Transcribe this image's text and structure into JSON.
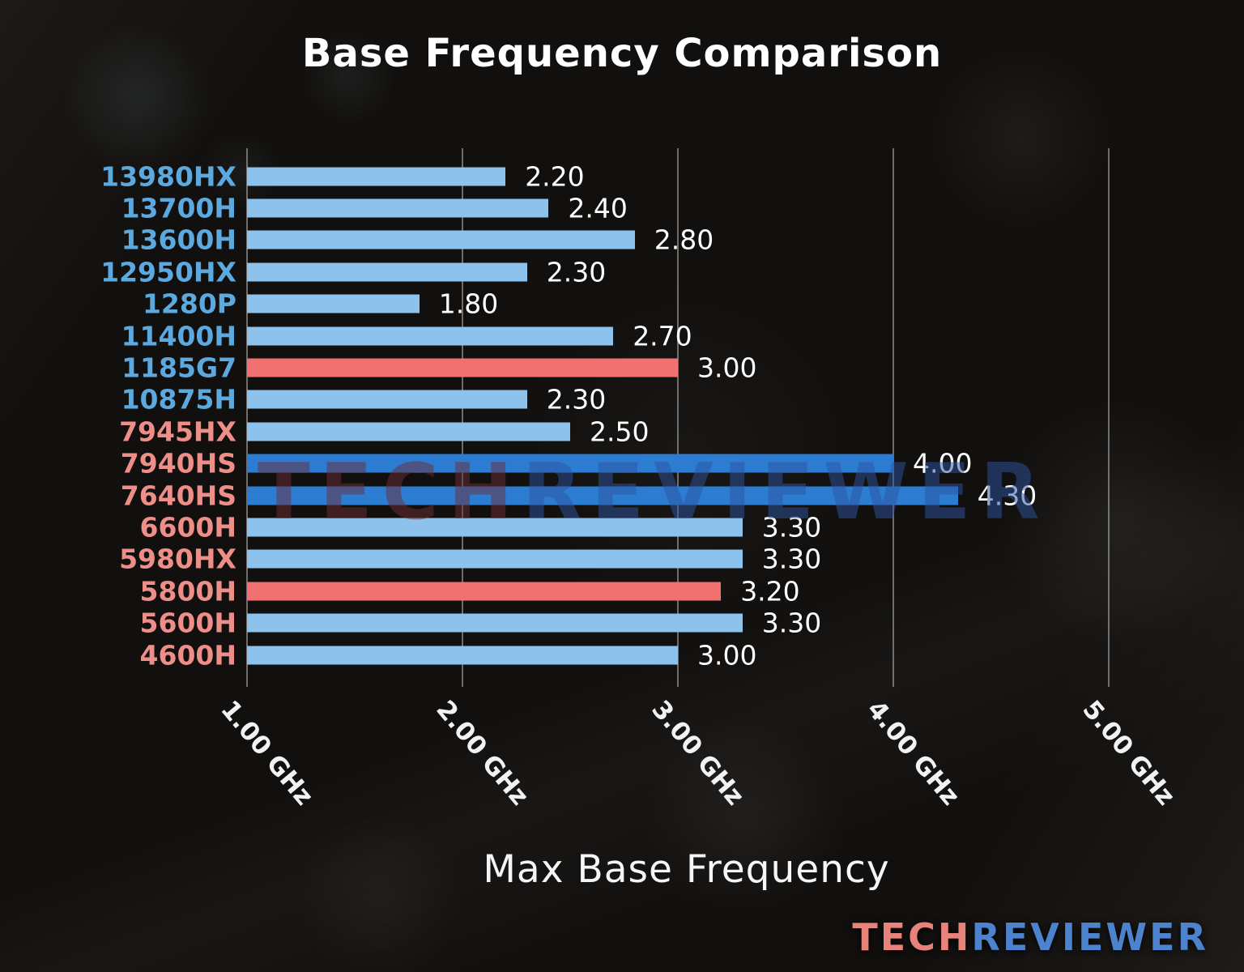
{
  "title": "Base Frequency Comparison",
  "xlabel": "Max Base Frequency",
  "watermark": {
    "tech": "TECH",
    "reviewer": "REVIEWER"
  },
  "logo": {
    "tech": "TECH",
    "reviewer": "REVIEWER"
  },
  "colors": {
    "bar_light_blue": "#8CC2EB",
    "bar_dark_blue": "#2C7CD1",
    "bar_red": "#F07170",
    "intel_label": "#5BA9DE",
    "amd_label": "#EE8E88",
    "value_text": "#FFFFFF",
    "gridline": "#B9B9B9",
    "background": "#12100E"
  },
  "chart_data": {
    "type": "bar",
    "orientation": "horizontal",
    "title": "Base Frequency Comparison",
    "xlabel": "Max Base Frequency",
    "xlim": [
      1.0,
      5.5
    ],
    "grid": true,
    "x_ticks": [
      {
        "value": 1.0,
        "label": "1.00 GHz"
      },
      {
        "value": 2.0,
        "label": "2.00 GHz"
      },
      {
        "value": 3.0,
        "label": "3.00 GHz"
      },
      {
        "value": 4.0,
        "label": "4.00 GHz"
      },
      {
        "value": 5.0,
        "label": "5.00 GHz"
      }
    ],
    "bars": [
      {
        "category": "13980HX",
        "value": 2.2,
        "value_label": "2.20",
        "bar_color": "#8CC2EB",
        "label_color": "#5BA9DE"
      },
      {
        "category": "13700H",
        "value": 2.4,
        "value_label": "2.40",
        "bar_color": "#8CC2EB",
        "label_color": "#5BA9DE"
      },
      {
        "category": "13600H",
        "value": 2.8,
        "value_label": "2.80",
        "bar_color": "#8CC2EB",
        "label_color": "#5BA9DE"
      },
      {
        "category": "12950HX",
        "value": 2.3,
        "value_label": "2.30",
        "bar_color": "#8CC2EB",
        "label_color": "#5BA9DE"
      },
      {
        "category": "1280P",
        "value": 1.8,
        "value_label": "1.80",
        "bar_color": "#8CC2EB",
        "label_color": "#5BA9DE"
      },
      {
        "category": "11400H",
        "value": 2.7,
        "value_label": "2.70",
        "bar_color": "#8CC2EB",
        "label_color": "#5BA9DE"
      },
      {
        "category": "1185G7",
        "value": 3.0,
        "value_label": "3.00",
        "bar_color": "#F07170",
        "label_color": "#5BA9DE"
      },
      {
        "category": "10875H",
        "value": 2.3,
        "value_label": "2.30",
        "bar_color": "#8CC2EB",
        "label_color": "#5BA9DE"
      },
      {
        "category": "7945HX",
        "value": 2.5,
        "value_label": "2.50",
        "bar_color": "#8CC2EB",
        "label_color": "#EE8E88"
      },
      {
        "category": "7940HS",
        "value": 4.0,
        "value_label": "4.00",
        "bar_color": "#2C7CD1",
        "label_color": "#EE8E88"
      },
      {
        "category": "7640HS",
        "value": 4.3,
        "value_label": "4.30",
        "bar_color": "#2C7CD1",
        "label_color": "#EE8E88"
      },
      {
        "category": "6600H",
        "value": 3.3,
        "value_label": "3.30",
        "bar_color": "#8CC2EB",
        "label_color": "#EE8E88"
      },
      {
        "category": "5980HX",
        "value": 3.3,
        "value_label": "3.30",
        "bar_color": "#8CC2EB",
        "label_color": "#EE8E88"
      },
      {
        "category": "5800H",
        "value": 3.2,
        "value_label": "3.20",
        "bar_color": "#F07170",
        "label_color": "#EE8E88"
      },
      {
        "category": "5600H",
        "value": 3.3,
        "value_label": "3.30",
        "bar_color": "#8CC2EB",
        "label_color": "#EE8E88"
      },
      {
        "category": "4600H",
        "value": 3.0,
        "value_label": "3.00",
        "bar_color": "#8CC2EB",
        "label_color": "#EE8E88"
      }
    ]
  }
}
